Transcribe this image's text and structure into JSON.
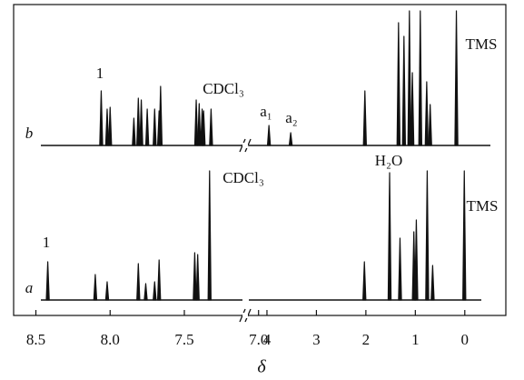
{
  "chart_data": {
    "type": "spectrum",
    "xlabel": "δ",
    "segments": [
      {
        "xlim": [
          8.65,
          7.09
        ],
        "xticks": [
          8.5,
          {
            "value": 8,
            "label": "8.0"
          },
          7.5,
          {
            "value": 7,
            "label": "7.0"
          }
        ]
      },
      {
        "xlim": [
          4.44,
          -0.83
        ],
        "xticks": [
          4,
          3,
          2,
          1,
          0
        ]
      }
    ],
    "series": [
      {
        "name": "b",
        "color": "#111111",
        "x": [
          8.06,
          8.02,
          8.0,
          7.84,
          7.81,
          7.79,
          7.75,
          7.7,
          7.67,
          7.66,
          7.42,
          7.4,
          7.38,
          7.37,
          7.32,
          3.96,
          3.52,
          2.02,
          1.34,
          1.23,
          1.12,
          1.06,
          0.9,
          0.77,
          0.7,
          0.17
        ],
        "values": [
          60,
          40,
          42,
          30,
          52,
          50,
          40,
          40,
          38,
          65,
          50,
          46,
          40,
          38,
          40,
          22,
          14,
          60,
          135,
          120,
          148,
          80,
          148,
          70,
          45,
          148
        ],
        "annotations": [
          "1",
          "CDCl₃",
          "a₁",
          "a₂",
          "TMS"
        ]
      },
      {
        "name": "a",
        "color": "#111111",
        "x": [
          8.42,
          8.1,
          8.02,
          7.81,
          7.76,
          7.7,
          7.67,
          7.43,
          7.41,
          7.33,
          2.03,
          1.52,
          1.31,
          1.03,
          0.98,
          0.76,
          0.65,
          0.01
        ],
        "values": [
          42,
          28,
          20,
          40,
          18,
          20,
          44,
          52,
          50,
          142,
          42,
          140,
          68,
          75,
          88,
          142,
          38,
          142
        ],
        "annotations": [
          "1",
          "CDCl₃",
          "H₂O",
          "TMS"
        ]
      }
    ]
  }
}
